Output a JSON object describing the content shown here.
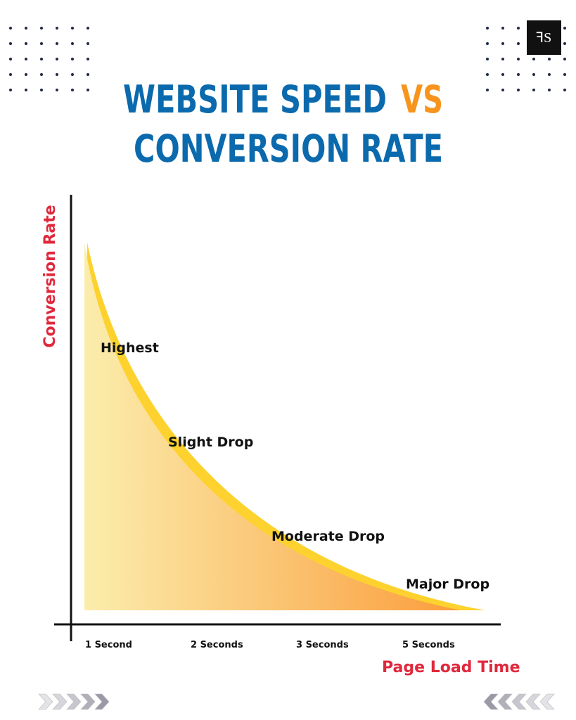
{
  "title": {
    "line1": "WEBSITE SPEED",
    "highlight": "VS",
    "line2": "CONVERSION RATE"
  },
  "axes": {
    "y_label": "Conversion Rate",
    "x_label": "Page Load Time"
  },
  "x_labels": [
    "1 Second",
    "2 Seconds",
    "3 Seconds",
    "5 Seconds"
  ],
  "annotations": [
    "Highest",
    "Slight Drop",
    "Moderate Drop",
    "Major Drop"
  ]
}
